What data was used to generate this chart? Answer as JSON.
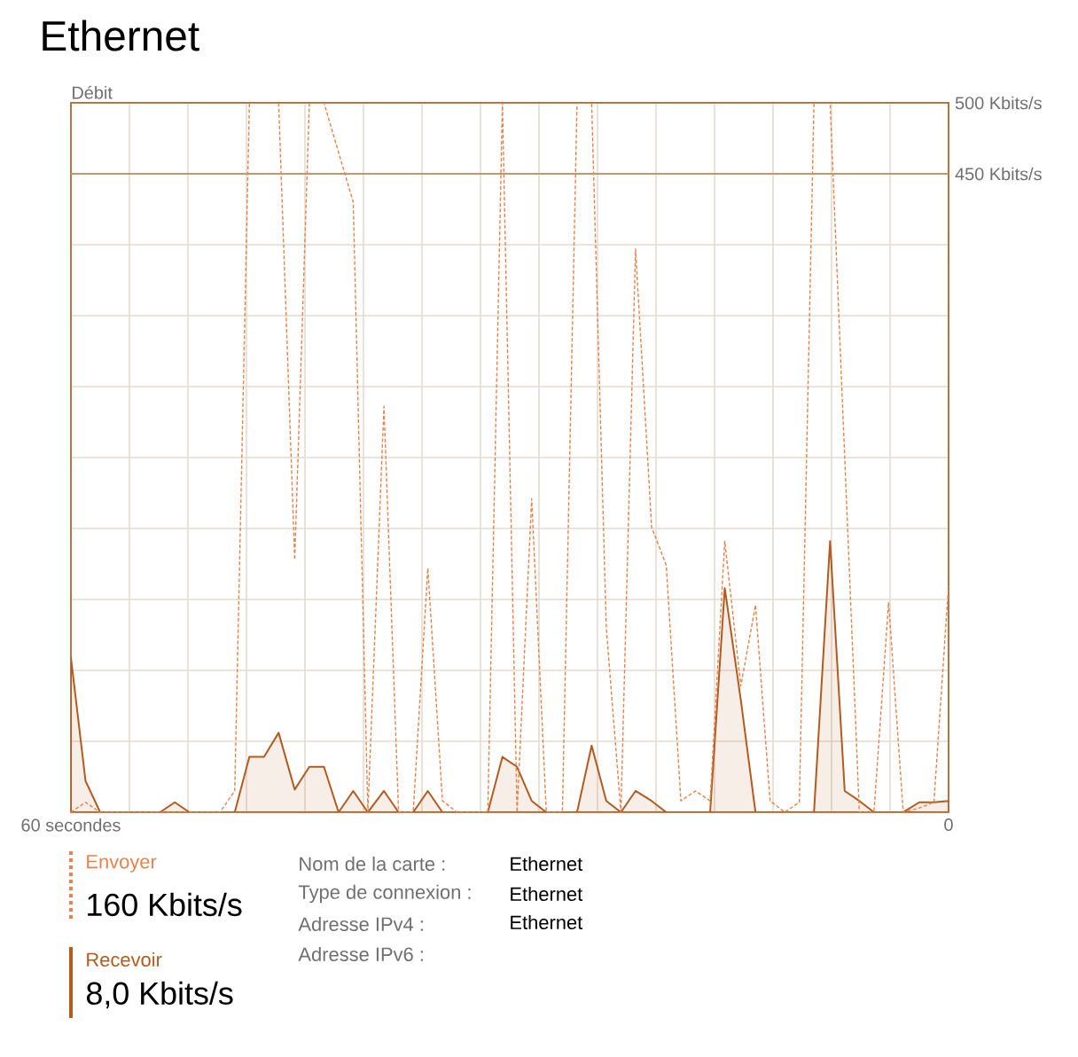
{
  "chart_data": {
    "type": "line",
    "title": "Ethernet",
    "ylabel": "Débit",
    "x": [
      60,
      59.0,
      58.0,
      56.9,
      55.9,
      54.9,
      53.9,
      52.9,
      51.9,
      50.8,
      49.8,
      48.8,
      47.8,
      46.8,
      45.8,
      44.7,
      43.7,
      42.7,
      41.7,
      40.7,
      39.7,
      38.6,
      37.6,
      36.6,
      35.6,
      34.6,
      33.6,
      32.5,
      31.5,
      30.5,
      29.5,
      28.5,
      27.5,
      26.4,
      25.4,
      24.4,
      23.4,
      22.4,
      21.4,
      20.3,
      19.3,
      18.3,
      17.3,
      16.3,
      15.3,
      14.2,
      13.2,
      12.2,
      11.2,
      10.2,
      9.2,
      8.1,
      7.1,
      6.1,
      5.1,
      4.1,
      3.1,
      2.0,
      1.0,
      0
    ],
    "series": [
      {
        "name": "Recevoir",
        "type": "area",
        "color": "#b35a1f",
        "line_style": "solid",
        "values": [
          109,
          22,
          0,
          0,
          0,
          0,
          0,
          7,
          0,
          0,
          0,
          0,
          39,
          39,
          56,
          16,
          32,
          32,
          0,
          15,
          0,
          15,
          0,
          0,
          15,
          0,
          0,
          0,
          0,
          39,
          32,
          8,
          0,
          0,
          0,
          47,
          8,
          0,
          15,
          8,
          0,
          0,
          0,
          0,
          158,
          79,
          0,
          0,
          0,
          0,
          0,
          191,
          15,
          8,
          0,
          0,
          0,
          7,
          7,
          8
        ]
      },
      {
        "name": "Envoyer",
        "type": "line",
        "color": "#e8804a",
        "line_style": "dashed",
        "values": [
          0,
          7,
          0,
          0,
          0,
          0,
          0,
          0,
          0,
          0,
          0,
          15,
          500,
          500,
          500,
          178,
          500,
          500,
          465,
          430,
          0,
          286,
          0,
          0,
          172,
          8,
          0,
          0,
          0,
          500,
          0,
          221,
          0,
          0,
          500,
          500,
          130,
          0,
          397,
          201,
          174,
          8,
          15,
          8,
          191,
          89,
          146,
          8,
          0,
          7,
          500,
          500,
          250,
          0,
          0,
          148,
          0,
          3,
          7,
          160
        ]
      }
    ],
    "xlim": [
      60,
      0
    ],
    "xticks": [
      {
        "value": 60,
        "label": "60 secondes"
      },
      {
        "value": 56,
        "label": null
      },
      {
        "value": 52,
        "label": null
      },
      {
        "value": 48,
        "label": null
      },
      {
        "value": 44,
        "label": null
      },
      {
        "value": 40,
        "label": null
      },
      {
        "value": 36,
        "label": null
      },
      {
        "value": 32,
        "label": null
      },
      {
        "value": 28,
        "label": null
      },
      {
        "value": 24,
        "label": null
      },
      {
        "value": 20,
        "label": null
      },
      {
        "value": 16,
        "label": null
      },
      {
        "value": 12,
        "label": null
      },
      {
        "value": 8,
        "label": null
      },
      {
        "value": 4,
        "label": null
      },
      0
    ],
    "ylim": [
      0,
      500
    ],
    "yticks": [
      {
        "value": 0,
        "label": null
      },
      {
        "value": 50,
        "label": null
      },
      {
        "value": 100,
        "label": null
      },
      {
        "value": 150,
        "label": null
      },
      {
        "value": 200,
        "label": null
      },
      {
        "value": 250,
        "label": null
      },
      {
        "value": 300,
        "label": null
      },
      {
        "value": 350,
        "label": null
      },
      {
        "value": 400,
        "label": null
      },
      {
        "value": 450,
        "label": "450 Kbits/s"
      },
      {
        "value": 500,
        "label": "500 Kbits/s"
      }
    ],
    "ref_lines": [
      {
        "axis": "y",
        "value": 450,
        "color": "#c8956a"
      }
    ],
    "grid": true,
    "legend": "bottom left",
    "marker": "none",
    "annotations": [
      "8,0 Kbits/s",
      "160 Kbits/s",
      "Nom de la carte :",
      "Ethernet",
      "Type de connexion :",
      "Ethernet",
      "Adresse IPv4 :",
      "Ethernet",
      "Adresse IPv6 :"
    ]
  }
}
